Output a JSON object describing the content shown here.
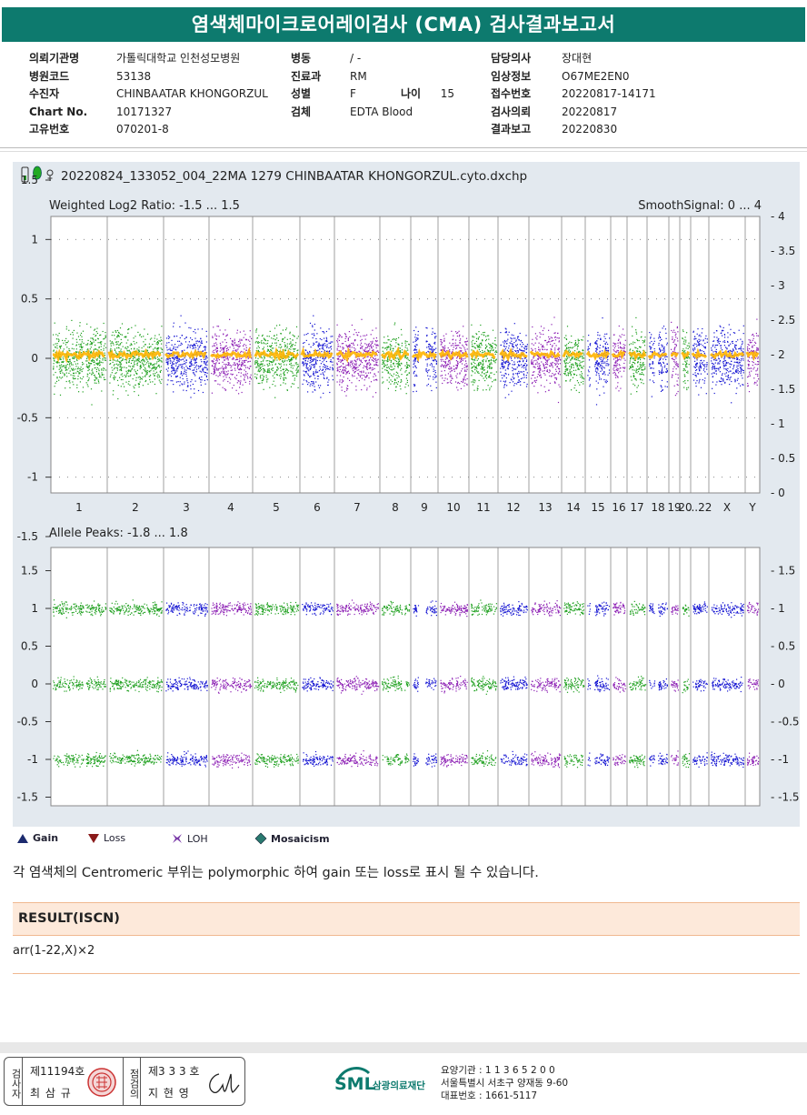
{
  "header": {
    "title": "염색체마이크로어레이검사 (CMA) 검사결과보고서"
  },
  "patient": {
    "col1": [
      {
        "label": "의뢰기관명",
        "value": "가톨릭대학교 인천성모병원"
      },
      {
        "label": "병원코드",
        "value": "53138"
      },
      {
        "label": "수진자",
        "value": "CHINBAATAR KHONGORZUL"
      },
      {
        "label": "Chart No.",
        "value": "10171327"
      },
      {
        "label": "고유번호",
        "value": "070201-8"
      }
    ],
    "col2": [
      {
        "label": "병동",
        "value": "/ -"
      },
      {
        "label": "진료과",
        "value": "RM"
      },
      {
        "label": "성별",
        "value": "F"
      },
      {
        "label": "검체",
        "value": "EDTA Blood"
      }
    ],
    "age": {
      "label": "나이",
      "value": "15"
    },
    "col3": [
      {
        "label": "담당의사",
        "value": "장대현"
      },
      {
        "label": "임상정보",
        "value": "O67ME2EN0"
      },
      {
        "label": "접수번호",
        "value": "20220817-14171"
      },
      {
        "label": "검사의뢰",
        "value": "20220817"
      },
      {
        "label": "결과보고",
        "value": "20220830"
      }
    ]
  },
  "plot": {
    "file_title": "20220824_133052_004_22MA 1279 CHINBAATAR KHONGORZUL.cyto.dxchp",
    "top_left_label": "Weighted Log2 Ratio: -1.5 ... 1.5",
    "top_right_label": "SmoothSignal: 0 ... 4",
    "bottom_label": "Allele Peaks: -1.8 ... 1.8",
    "top_left_ticks": [
      "1.5",
      "1",
      "0.5",
      "0",
      "-0.5",
      "-1",
      "-1.5"
    ],
    "top_right_ticks": [
      "4",
      "3.5",
      "3",
      "2.5",
      "2",
      "1.5",
      "1",
      "0.5",
      "0"
    ],
    "bottom_ticks": [
      "1.5",
      "1",
      "0.5",
      "0",
      "-0.5",
      "-1",
      "-1.5"
    ],
    "chromosomes": [
      "1",
      "2",
      "3",
      "4",
      "5",
      "6",
      "7",
      "8",
      "9",
      "10",
      "11",
      "12",
      "13",
      "14",
      "15",
      "16",
      "17",
      "18",
      "19",
      "20",
      "...22",
      "X",
      "Y"
    ],
    "colors": {
      "green": "#1ea01e",
      "blue": "#1414d2",
      "purple": "#8c1eb4",
      "orange": "#ffb400",
      "background": "#e3e9ef"
    }
  },
  "legend": [
    {
      "label": "Gain",
      "icon": "triangle-up-icon",
      "color": "#1c2a6e"
    },
    {
      "label": "Loss",
      "icon": "triangle-down-icon",
      "color": "#8a1a1a"
    },
    {
      "label": "LOH",
      "icon": "loh-icon",
      "color": "#7a3aa8"
    },
    {
      "label": "Mosaicism",
      "icon": "diamond-icon",
      "color": "#2a7a70"
    }
  ],
  "note": "각 염색체의 Centromeric 부위는 polymorphic 하여 gain 또는 loss로 표시 될 수 있습니다.",
  "result": {
    "heading": "RESULT(ISCN)",
    "value": "arr(1-22,X)×2"
  },
  "signatures": {
    "examiner_label": "검사자",
    "examiner_license": "제11194호",
    "examiner_name": "최 삼 규",
    "approver_label": "점검의",
    "approver_license": "제3 3 3 호",
    "approver_name": "지 현 영"
  },
  "institution": {
    "logo_text": "SML",
    "name": "삼광의료재단",
    "code_line": "요양기관 : 1 1 3 6 5 2 0 0",
    "address_line": "서울특별시 서초구 양재동 9-60",
    "phone_line": "대표번호 : 1661-5117"
  }
}
